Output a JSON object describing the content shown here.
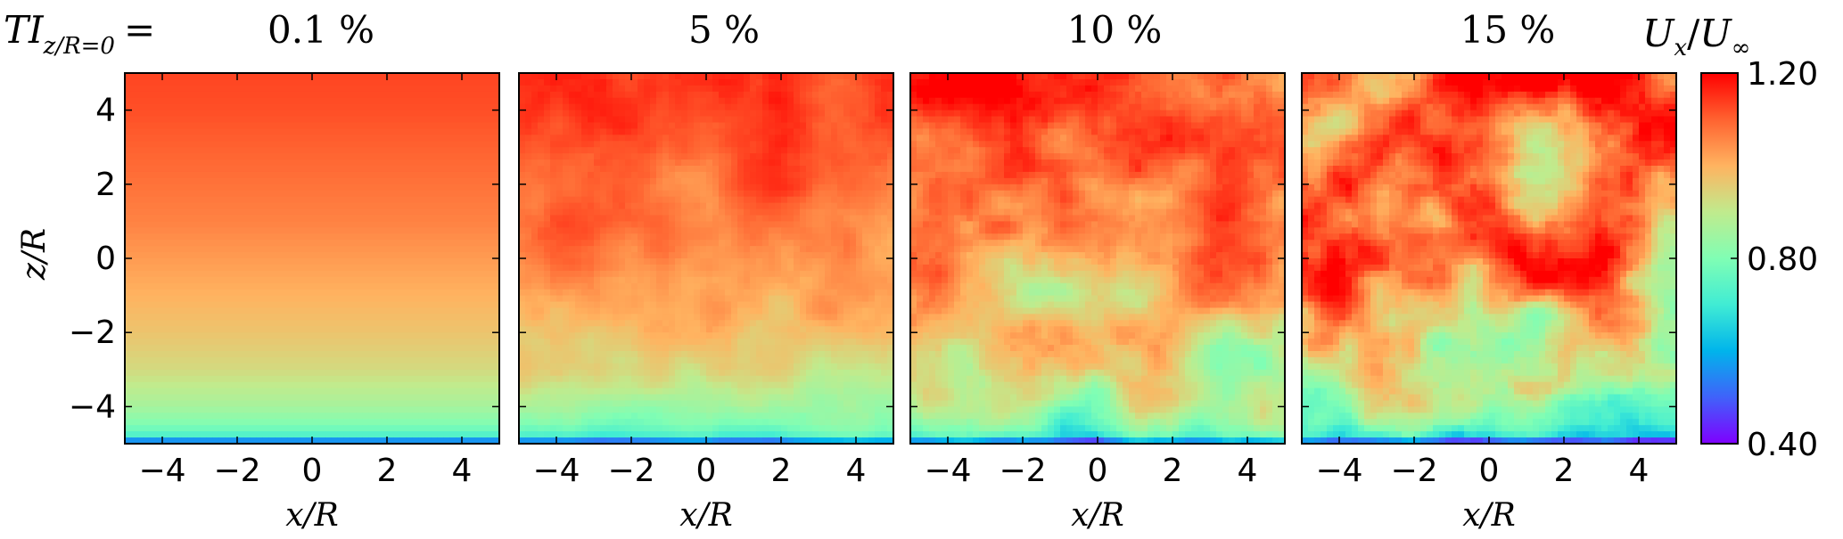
{
  "chart_data": {
    "type": "heatmap",
    "title_prefix": "TI",
    "title_subscript": "z/R=0",
    "title_equals": "=",
    "panels": [
      {
        "title": "0.1 %",
        "turbulence_intensity_percent": 0.1
      },
      {
        "title": "5 %",
        "turbulence_intensity_percent": 5
      },
      {
        "title": "10 %",
        "turbulence_intensity_percent": 10
      },
      {
        "title": "15 %",
        "turbulence_intensity_percent": 15
      }
    ],
    "xlabel": "x/R",
    "ylabel": "z/R",
    "xlim": [
      -5,
      5
    ],
    "ylim": [
      -5,
      5
    ],
    "x_ticks": [
      -4,
      -2,
      0,
      2,
      4
    ],
    "y_ticks": [
      -4,
      -2,
      0,
      2,
      4
    ],
    "x_tick_labels": [
      "−4",
      "−2",
      "0",
      "2",
      "4"
    ],
    "y_tick_labels": [
      "−4",
      "−2",
      "0",
      "2",
      "4"
    ],
    "colorbar": {
      "label_numerator": "U",
      "label_numerator_sub": "x",
      "label_separator": "/",
      "label_denominator": "U",
      "label_denominator_sub": "∞",
      "min": 0.4,
      "max": 1.2,
      "ticks": [
        0.4,
        0.8,
        1.2
      ],
      "tick_labels": [
        "0.40",
        "0.80",
        "1.20"
      ],
      "colormap": "rainbow"
    },
    "mean_profile": {
      "z": [
        -5,
        -4.8,
        -4.5,
        -4,
        -3,
        -2,
        -1,
        0,
        1,
        2,
        3,
        4,
        5
      ],
      "u_ratio": [
        0.45,
        0.72,
        0.8,
        0.86,
        0.93,
        0.97,
        1.0,
        1.03,
        1.06,
        1.08,
        1.1,
        1.12,
        1.13
      ]
    }
  }
}
